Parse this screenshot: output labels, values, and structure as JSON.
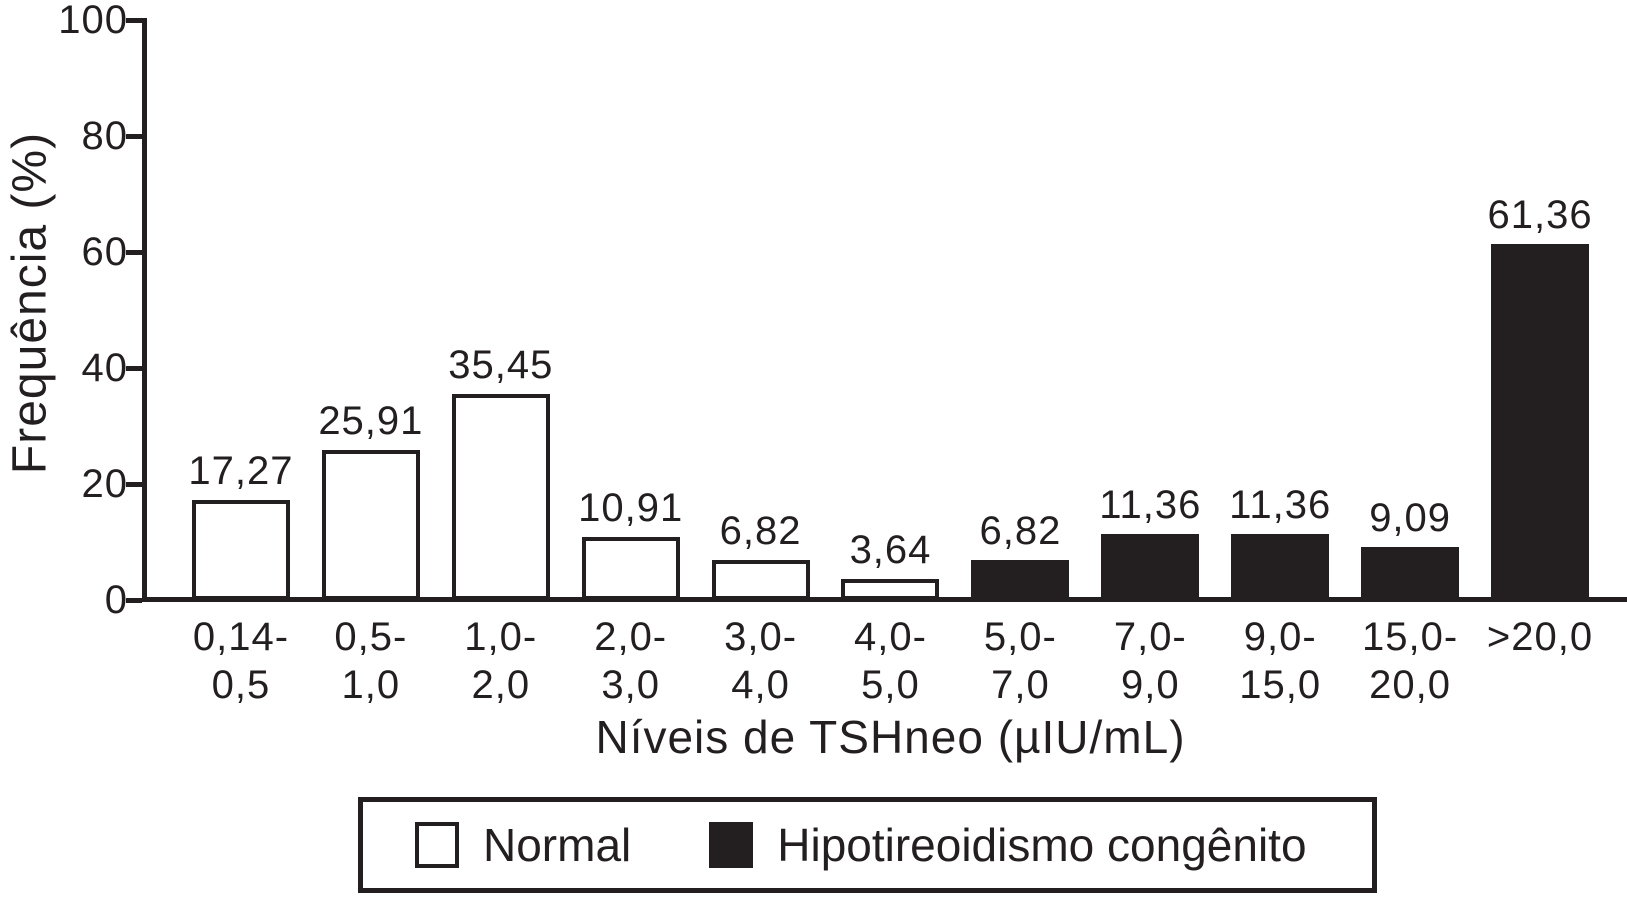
{
  "chart_data": {
    "type": "bar",
    "title": "",
    "xlabel": "Níveis de TSHneo (µIU/mL)",
    "ylabel": "Frequência (%)",
    "ylim": [
      0,
      100
    ],
    "yticks": [
      "0",
      "20",
      "40",
      "60",
      "80",
      "100"
    ],
    "grid": false,
    "legend_position": "bottom",
    "categories": [
      "0,14-\n0,5",
      "0,5-\n1,0",
      "1,0-\n2,0",
      "2,0-\n3,0",
      "3,0-\n4,0",
      "4,0-\n5,0",
      "5,0-\n7,0",
      "7,0-\n9,0",
      "9,0-\n15,0",
      "15,0-\n20,0",
      ">20,0"
    ],
    "bars": [
      {
        "category": "0,14-\n0,5",
        "value": 17.27,
        "display_value": "17,27",
        "series": "Normal"
      },
      {
        "category": "0,5-\n1,0",
        "value": 25.91,
        "display_value": "25,91",
        "series": "Normal"
      },
      {
        "category": "1,0-\n2,0",
        "value": 35.45,
        "display_value": "35,45",
        "series": "Normal"
      },
      {
        "category": "2,0-\n3,0",
        "value": 10.91,
        "display_value": "10,91",
        "series": "Normal"
      },
      {
        "category": "3,0-\n4,0",
        "value": 6.82,
        "display_value": "6,82",
        "series": "Normal"
      },
      {
        "category": "4,0-\n5,0",
        "value": 3.64,
        "display_value": "3,64",
        "series": "Normal"
      },
      {
        "category": "5,0-\n7,0",
        "value": 6.82,
        "display_value": "6,82",
        "series": "Hipotireoidismo congênito"
      },
      {
        "category": "7,0-\n9,0",
        "value": 11.36,
        "display_value": "11,36",
        "series": "Hipotireoidismo congênito"
      },
      {
        "category": "9,0-\n15,0",
        "value": 11.36,
        "display_value": "11,36",
        "series": "Hipotireoidismo congênito"
      },
      {
        "category": "15,0-\n20,0",
        "value": 9.09,
        "display_value": "9,09",
        "series": "Hipotireoidismo congênito"
      },
      {
        "category": ">20,0",
        "value": 61.36,
        "display_value": "61,36",
        "series": "Hipotireoidismo congênito"
      }
    ],
    "legend": [
      {
        "label": "Normal",
        "fill": "#ffffff"
      },
      {
        "label": "Hipotireoidismo congênito",
        "fill": "#231f20"
      }
    ],
    "colors": {
      "bar_border": "#231f20",
      "axis": "#231f20",
      "text": "#231f20",
      "background": "#ffffff"
    }
  }
}
